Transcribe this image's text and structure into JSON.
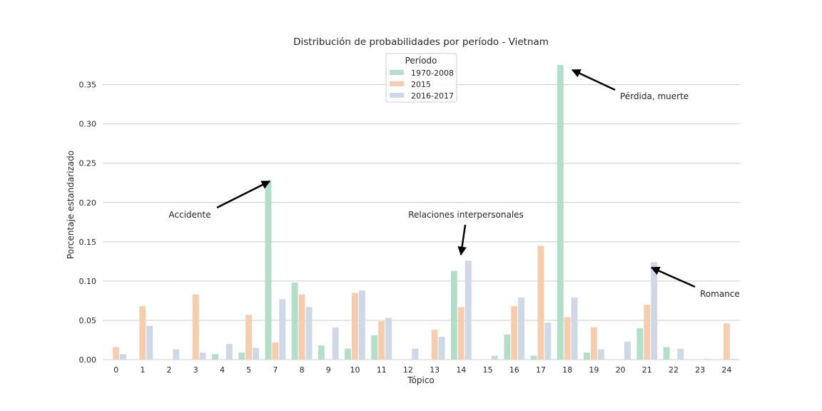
{
  "chart_data": {
    "type": "bar",
    "title": "Distribución de probabilidades por período - Vietnam",
    "xlabel": "Tópico",
    "ylabel": "Porcentaje estandarizado",
    "categories": [
      "0",
      "1",
      "2",
      "3",
      "4",
      "5",
      "7",
      "8",
      "9",
      "10",
      "11",
      "12",
      "13",
      "14",
      "15",
      "16",
      "17",
      "18",
      "19",
      "20",
      "21",
      "22",
      "23",
      "24"
    ],
    "ylim": [
      0,
      0.376
    ],
    "yticks": [
      "0.00",
      "0.05",
      "0.10",
      "0.15",
      "0.20",
      "0.25",
      "0.30",
      "0.35"
    ],
    "grid": "horizontal",
    "legend": {
      "title": "Período",
      "placement": "top-center"
    },
    "series": [
      {
        "name": "1970-2008",
        "color": "#b3dfca",
        "values": [
          0,
          0,
          0,
          0,
          0.007,
          0.009,
          0.228,
          0.098,
          0.018,
          0.014,
          0.031,
          0,
          0,
          0.113,
          0,
          0.032,
          0.005,
          0.375,
          0.009,
          0,
          0.04,
          0.016,
          0,
          0
        ]
      },
      {
        "name": "2015",
        "color": "#f7cdb0",
        "values": [
          0.016,
          0.068,
          0,
          0.083,
          0,
          0.057,
          0.022,
          0.083,
          0,
          0.085,
          0.049,
          0,
          0.038,
          0.067,
          0,
          0.068,
          0.145,
          0.054,
          0.041,
          0,
          0.07,
          0,
          0,
          0.046
        ]
      },
      {
        "name": "2016-2017",
        "color": "#cfd8e6",
        "values": [
          0.007,
          0.043,
          0.013,
          0.009,
          0.02,
          0.015,
          0.077,
          0.067,
          0.041,
          0.088,
          0.053,
          0.014,
          0.029,
          0.126,
          0.005,
          0.079,
          0.047,
          0.079,
          0.013,
          0.023,
          0.124,
          0.014,
          0.001,
          0.001
        ]
      }
    ],
    "annotations": [
      {
        "text": "Accidente",
        "target_category": "7",
        "target_value": 0.228
      },
      {
        "text": "Relaciones interpersonales",
        "target_category": "14",
        "target_value": 0.13
      },
      {
        "text": "Pérdida, muerte",
        "target_category": "18",
        "target_value": 0.37
      },
      {
        "text": "Romance",
        "target_category": "21",
        "target_value": 0.118
      }
    ]
  }
}
